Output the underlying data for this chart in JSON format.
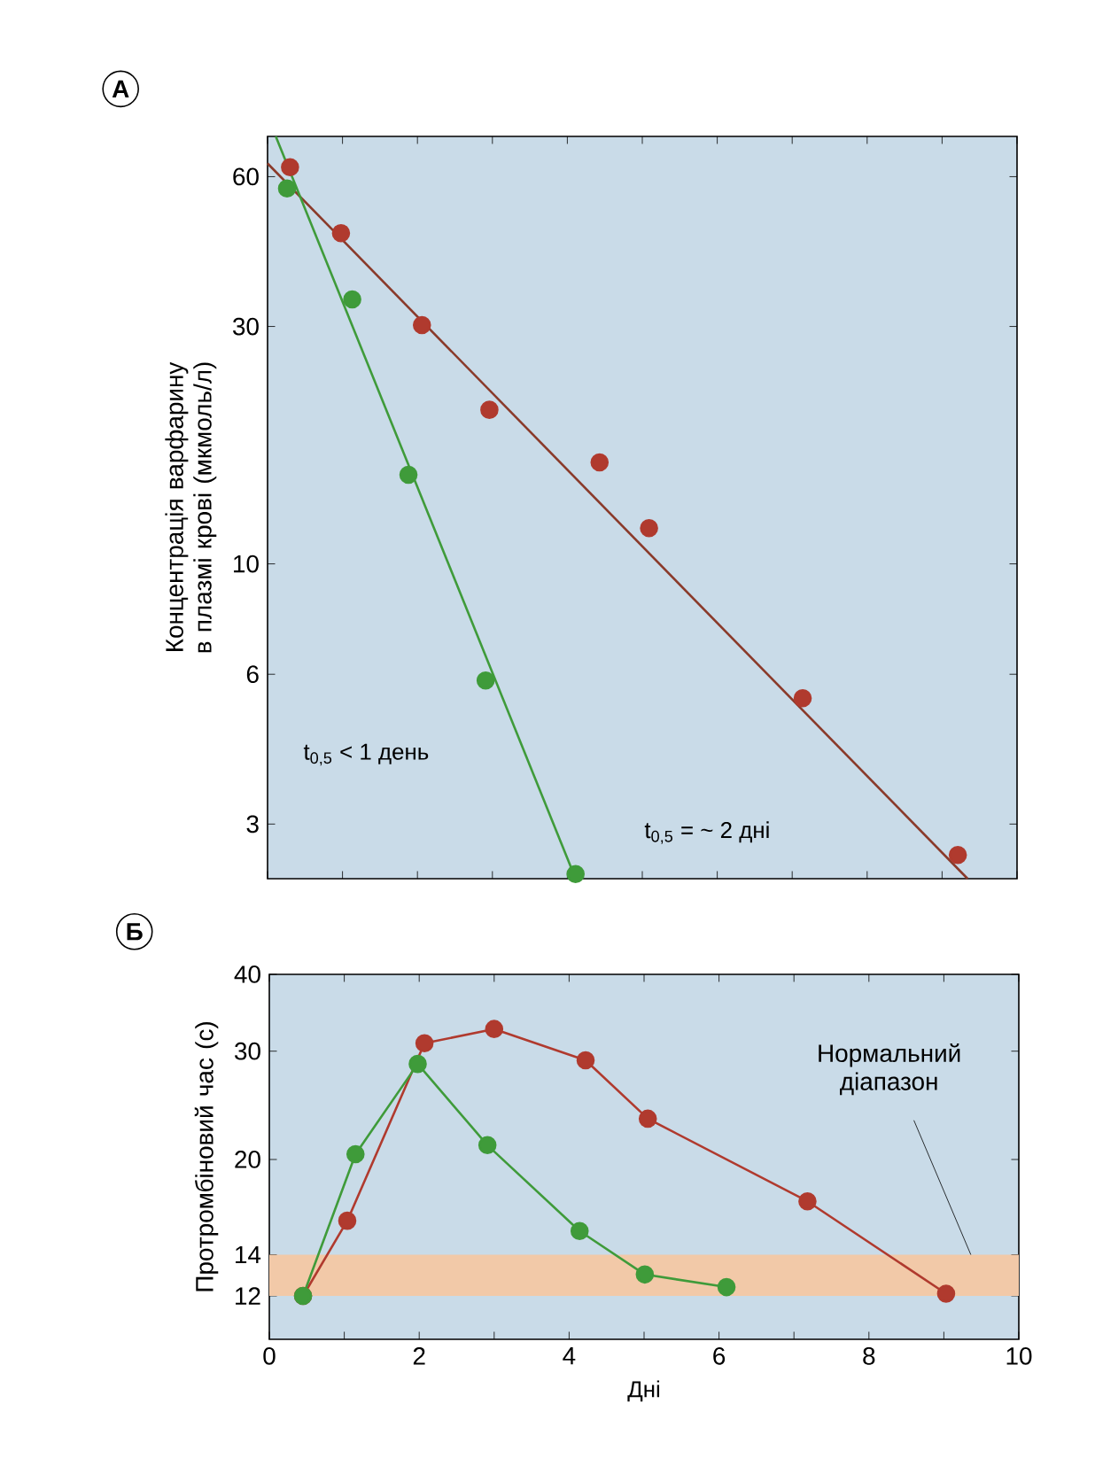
{
  "chart_data": [
    {
      "type": "scatter",
      "ylabel": "Концентрація варфарину в плазмі крові (мкмоль/л)",
      "log": "y",
      "marker": "circle",
      "tick_labels": "y",
      "xlim": [
        0,
        10
      ],
      "xticks": [
        0,
        1,
        2,
        3,
        4,
        5,
        6,
        7,
        8,
        9,
        10
      ],
      "ylim": [
        2.33,
        72.3
      ],
      "yticks": [
        3,
        6,
        10,
        30,
        60
      ],
      "annotations": [
        "A",
        "t$_{0,5}$ < 1 день",
        "t$_{0,5}$ = ~ 2 дні"
      ],
      "series": [
        {
          "color": "#b03a2e",
          "x": [
            0.3,
            0.98,
            2.06,
            2.96,
            4.43,
            5.09,
            7.14,
            9.21
          ],
          "values": [
            62.7,
            46.2,
            30.2,
            20.4,
            16.0,
            11.8,
            5.37,
            2.6
          ]
        },
        {
          "color": "#3f9b3a",
          "x": [
            0.26,
            1.13,
            1.88,
            2.91,
            4.11
          ],
          "values": [
            56.8,
            34.0,
            15.1,
            5.83,
            2.38
          ]
        },
        {
          "type": "line",
          "marker": "none",
          "color": "#8a3a2a",
          "x": [
            0,
            9.34
          ],
          "values": [
            63.8,
            2.33
          ]
        },
        {
          "type": "line",
          "marker": "none",
          "color": "#3f9b3a",
          "x": [
            0.11,
            4.11
          ],
          "values": [
            72.3,
            2.33
          ]
        }
      ]
    },
    {
      "type": "line",
      "xlabel": "Дні",
      "ylabel": "Протромбіновий час (с)",
      "log": "y",
      "marker": "circle",
      "xlim": [
        0,
        10
      ],
      "xticks": [
        0,
        {
          "value": 1,
          "label": null
        },
        2,
        {
          "value": 3,
          "label": null
        },
        4,
        {
          "value": 5,
          "label": null
        },
        6,
        {
          "value": 7,
          "label": null
        },
        8,
        {
          "value": 9,
          "label": null
        },
        10
      ],
      "ylim": [
        10.2,
        40
      ],
      "yticks": [
        12,
        14,
        20,
        30,
        40
      ],
      "annotations": [
        "Б"
      ],
      "bands": [
        {
          "axis": "y",
          "from": 12,
          "to": 14,
          "label": "Нормальний діапазон",
          "color": "#f2c9a8"
        }
      ],
      "series": [
        {
          "color": "#b03a2e",
          "x": [
            0.45,
            1.04,
            2.07,
            3.0,
            4.22,
            5.05,
            7.18,
            9.03
          ],
          "values": [
            12.0,
            15.9,
            30.9,
            32.6,
            29.0,
            23.3,
            17.1,
            12.1
          ]
        },
        {
          "color": "#3f9b3a",
          "x": [
            0.45,
            1.15,
            1.98,
            2.91,
            4.14,
            5.01,
            6.1
          ],
          "values": [
            12.0,
            20.4,
            28.6,
            21.1,
            15.3,
            13.0,
            12.4
          ]
        }
      ]
    }
  ]
}
